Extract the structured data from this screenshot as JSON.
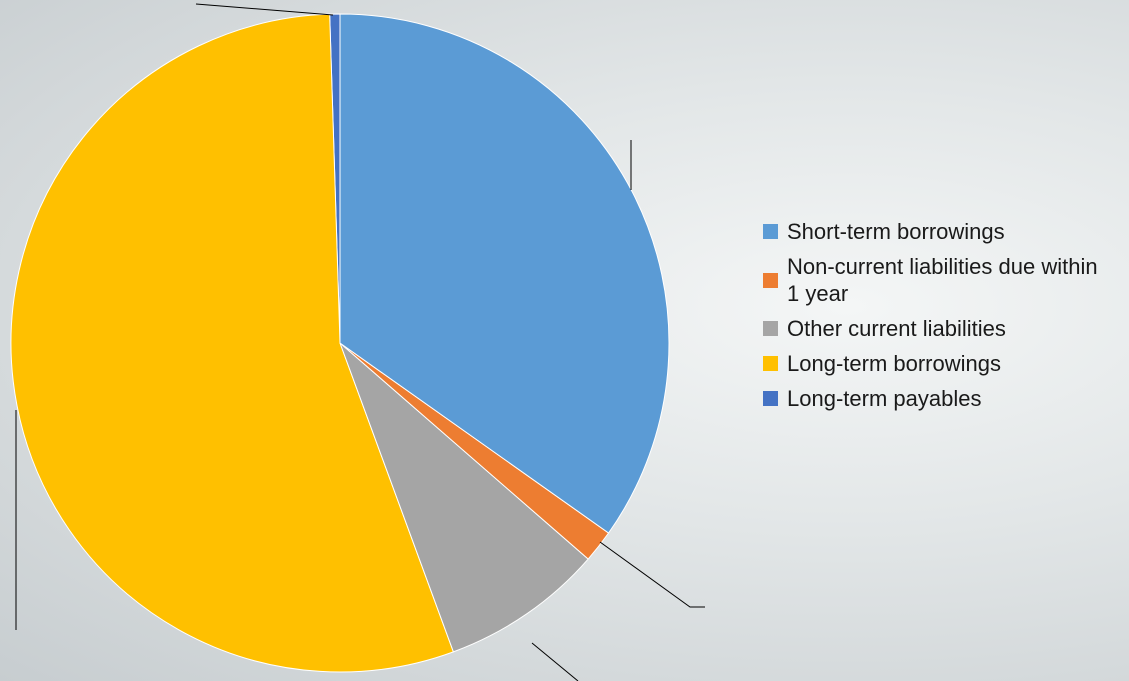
{
  "chart_data": {
    "type": "pie",
    "categories": [
      "Short-term borrowings",
      "Non-current liabilities due within  1 year",
      "Other current liabilities",
      "Long-term borrowings",
      "Long-term payables"
    ],
    "values": [
      34.8,
      1.6,
      8.0,
      55.1,
      0.5
    ],
    "colors": [
      "#5b9bd5",
      "#ed7d31",
      "#a5a5a5",
      "#ffc000",
      "#4472c4"
    ],
    "legend": "right"
  }
}
